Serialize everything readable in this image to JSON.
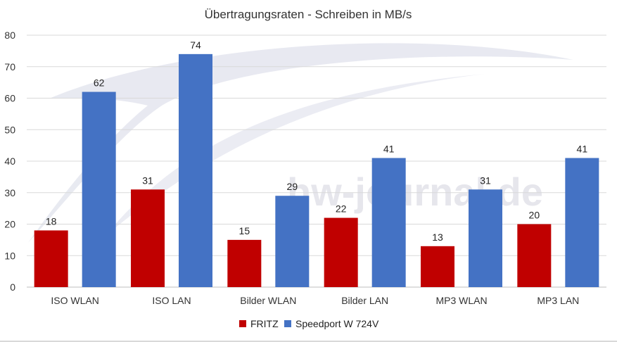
{
  "chart_data": {
    "type": "bar",
    "title": "Übertragungsraten - Schreiben in MB/s",
    "categories": [
      "ISO WLAN",
      "ISO LAN",
      "Bilder WLAN",
      "Bilder LAN",
      "MP3 WLAN",
      "MP3 LAN"
    ],
    "series": [
      {
        "name": "FRITZ",
        "color": "#c00000",
        "values": [
          18,
          31,
          15,
          22,
          13,
          20
        ]
      },
      {
        "name": "Speedport W 724V",
        "color": "#4472c4",
        "values": [
          62,
          74,
          29,
          41,
          31,
          41
        ]
      }
    ],
    "ylim": [
      0,
      80
    ],
    "yticks": [
      0,
      10,
      20,
      30,
      40,
      50,
      60,
      70,
      80
    ],
    "grid": true,
    "legend": "bottom-center",
    "xlabel": "",
    "ylabel": ""
  },
  "watermark": {
    "text": "hw-journal.de",
    "icon": "swoosh-logo-icon"
  }
}
